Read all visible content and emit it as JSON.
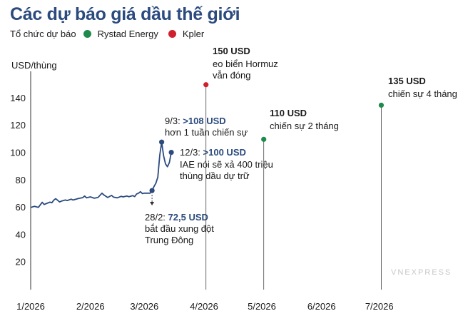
{
  "header": {
    "title": "Các dự báo giá dầu thế giới",
    "legend_label": "Tổ chức dự báo",
    "legend": [
      {
        "name": "Rystad Energy",
        "color": "#1f8a4c"
      },
      {
        "name": "Kpler",
        "color": "#d0202e"
      }
    ]
  },
  "watermark": "VNEXPRESS",
  "chart_data": {
    "type": "line",
    "title": "Các dự báo giá dầu thế giới",
    "ylabel": "USD/thùng",
    "xlabel": "",
    "ylim": [
      0,
      160
    ],
    "yticks": [
      20,
      40,
      60,
      80,
      100,
      120,
      140
    ],
    "x_tick_labels": [
      "1/2026",
      "2/2026",
      "3/2026",
      "4/2026",
      "5/2026",
      "6/2026",
      "7/2026"
    ],
    "x_tick_dates": [
      "2026-01-01",
      "2026-02-01",
      "2026-03-01",
      "2026-04-01",
      "2026-05-01",
      "2026-06-01",
      "2026-07-01"
    ],
    "grid": false,
    "series": [
      {
        "color": "#2b4a7e",
        "points": [
          [
            "2026-01-01",
            60.1
          ],
          [
            "2026-01-03",
            61.0
          ],
          [
            "2026-01-05",
            60.2
          ],
          [
            "2026-01-07",
            63.9
          ],
          [
            "2026-01-08",
            62.3
          ],
          [
            "2026-01-09",
            62.9
          ],
          [
            "2026-01-11",
            64.0
          ],
          [
            "2026-01-12",
            63.6
          ],
          [
            "2026-01-13",
            65.5
          ],
          [
            "2026-01-14",
            66.6
          ],
          [
            "2026-01-16",
            64.2
          ],
          [
            "2026-01-17",
            64.8
          ],
          [
            "2026-01-19",
            65.6
          ],
          [
            "2026-01-20",
            65.2
          ],
          [
            "2026-01-22",
            66.2
          ],
          [
            "2026-01-23",
            65.6
          ],
          [
            "2026-01-26",
            66.8
          ],
          [
            "2026-01-28",
            67.3
          ],
          [
            "2026-01-29",
            68.5
          ],
          [
            "2026-01-30",
            67.2
          ],
          [
            "2026-02-01",
            67.9
          ],
          [
            "2026-02-03",
            66.9
          ],
          [
            "2026-02-05",
            67.5
          ],
          [
            "2026-02-07",
            70.6
          ],
          [
            "2026-02-08",
            69.3
          ],
          [
            "2026-02-10",
            67.4
          ],
          [
            "2026-02-12",
            69.0
          ],
          [
            "2026-02-13",
            67.7
          ],
          [
            "2026-02-15",
            67.2
          ],
          [
            "2026-02-17",
            68.3
          ],
          [
            "2026-02-18",
            67.9
          ],
          [
            "2026-02-20",
            68.5
          ],
          [
            "2026-02-21",
            68.0
          ],
          [
            "2026-02-23",
            68.8
          ],
          [
            "2026-02-24",
            68.1
          ],
          [
            "2026-02-25",
            70.0
          ],
          [
            "2026-02-26",
            70.6
          ],
          [
            "2026-02-27",
            71.7
          ],
          [
            "2026-02-28",
            70.3
          ],
          [
            "2026-03-01",
            70.6
          ],
          [
            "2026-03-02",
            70.6
          ],
          [
            "2026-03-04",
            70.6
          ],
          [
            "2026-03-05",
            72.5
          ],
          [
            "2026-03-06",
            75.4
          ],
          [
            "2026-03-07",
            77.9
          ],
          [
            "2026-03-08",
            82.3
          ],
          [
            "2026-03-09",
            98.2
          ],
          [
            "2026-03-10",
            108.0
          ],
          [
            "2026-03-11",
            98.0
          ],
          [
            "2026-03-12",
            92.0
          ],
          [
            "2026-03-13",
            90.0
          ],
          [
            "2026-03-14",
            93.0
          ],
          [
            "2026-03-15",
            100.5
          ]
        ]
      }
    ],
    "forecasts": [
      {
        "source": "Kpler",
        "date": "2026-04-02",
        "value": 150,
        "color": "#d0202e",
        "value_label": "150 USD",
        "lines": [
          "eo biển Hormuz",
          "vẫn đóng"
        ]
      },
      {
        "source": "Rystad Energy",
        "date": "2026-05-02",
        "value": 110,
        "color": "#1f8a4c",
        "value_label": "110 USD",
        "lines": [
          "chiến sự 2 tháng"
        ]
      },
      {
        "source": "Rystad Energy",
        "date": "2026-07-02",
        "value": 135,
        "color": "#1f8a4c",
        "value_label": "135 USD",
        "lines": [
          "chiến sự 4 tháng"
        ]
      }
    ],
    "annotations": [
      {
        "date": "2026-03-10",
        "value": 108,
        "date_label": "9/3:",
        "value_label": ">108 USD",
        "lines": [
          "hơn 1 tuần chiến sự"
        ]
      },
      {
        "date": "2026-03-15",
        "value": 100.5,
        "date_label": "12/3:",
        "value_label": ">100 USD",
        "lines": [
          "IAE nói sẽ xả 400 triệu",
          "thùng dầu dự trữ"
        ]
      },
      {
        "date": "2026-03-05",
        "value": 72.5,
        "date_label": "28/2:",
        "value_label": "72,5 USD",
        "lines": [
          "bắt đầu xung đột",
          "Trung Đông"
        ]
      }
    ]
  }
}
